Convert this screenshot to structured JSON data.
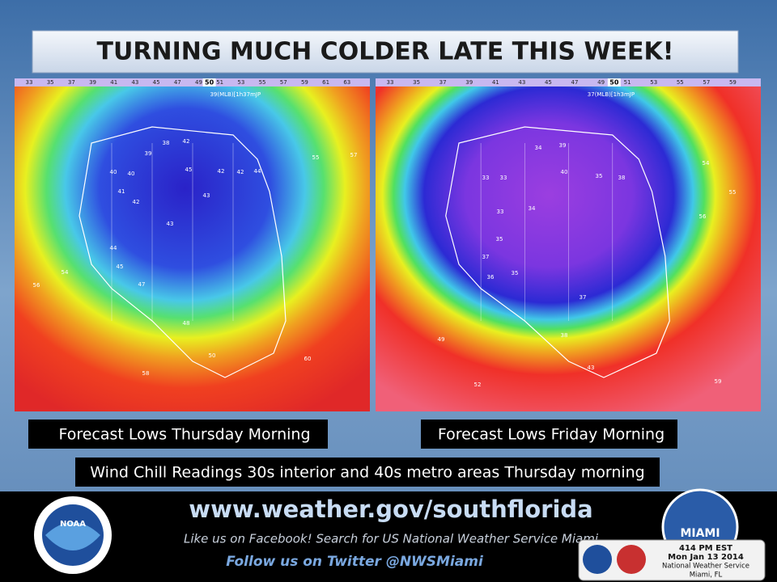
{
  "header": {
    "title": "TURNING MUCH COLDER LATE THIS WEEK!"
  },
  "maps": [
    {
      "caption": "Forecast Lows Thursday Morning",
      "station_label": "39(MLB)[1h37mJP",
      "scale": [
        33,
        35,
        37,
        39,
        41,
        43,
        45,
        47,
        49,
        51,
        53,
        55,
        57,
        59,
        61,
        63
      ],
      "scale_marker": 50,
      "values": [
        38,
        42,
        39,
        40,
        40,
        45,
        42,
        42,
        44,
        41,
        42,
        43,
        43,
        44,
        45,
        47,
        48,
        50,
        55,
        57,
        58,
        60,
        56,
        54
      ]
    },
    {
      "caption": "Forecast Lows Friday Morning",
      "station_label": "37(MLB)[1h3mJP",
      "scale": [
        33,
        35,
        37,
        39,
        41,
        43,
        45,
        47,
        49,
        51,
        53,
        55,
        57,
        59
      ],
      "scale_marker": 50,
      "values": [
        34,
        39,
        33,
        33,
        40,
        35,
        38,
        33,
        34,
        35,
        37,
        35,
        36,
        37,
        38,
        43,
        54,
        55,
        56,
        52,
        49,
        59
      ]
    }
  ],
  "note": "Wind Chill Readings 30s interior and 40s metro areas Thursday morning",
  "footer": {
    "url": "www.weather.gov/southflorida",
    "facebook": "Like us on Facebook! Search for US National Weather Service Miami",
    "twitter": "Follow us on Twitter @NWSMiami",
    "noaa_logo": "NOAA",
    "office_logo": "MIAMI",
    "stamp": [
      "414 PM EST",
      "Mon Jan 13 2014",
      "National Weather Service",
      "Miami, FL"
    ]
  }
}
